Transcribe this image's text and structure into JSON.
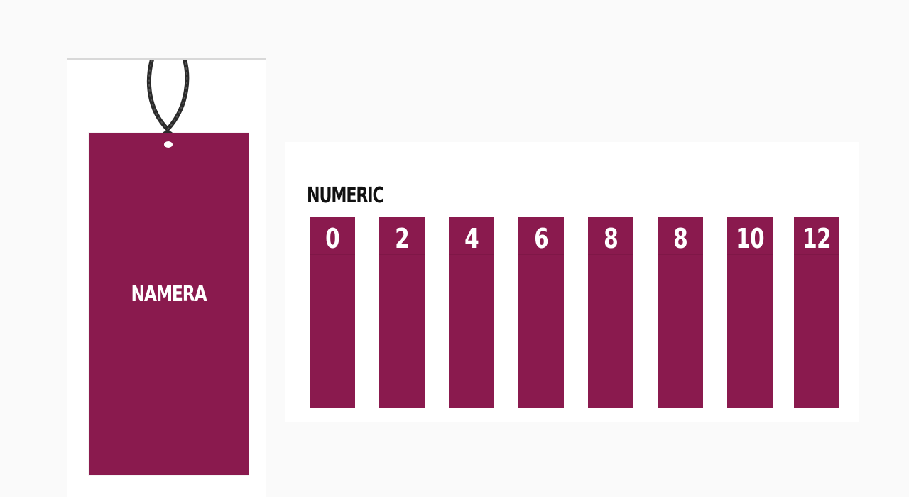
{
  "colors": {
    "tag": "#8a1a4e",
    "background": "#fafafa",
    "panel": "#ffffff",
    "title": "#111111",
    "label": "#ffffff",
    "string": "#2a2a2a"
  },
  "hang_tag": {
    "brand": "NAMERA",
    "string_icon": "twisted-cord-icon"
  },
  "numeric": {
    "title": "NUMERIC",
    "sizes": [
      "0",
      "2",
      "4",
      "6",
      "8",
      "8",
      "10",
      "12"
    ]
  }
}
